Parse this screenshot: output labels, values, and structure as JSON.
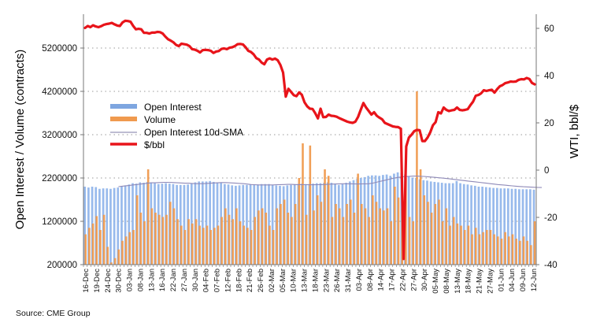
{
  "chart_data": {
    "type": "bar",
    "title": "",
    "source": "Source: CME Group",
    "y_left": {
      "label": "Open Interest / Volume (contracts)",
      "ticks": [
        200000,
        1200000,
        2200000,
        3200000,
        4200000,
        5200000
      ],
      "tick_labels": [
        "200000",
        "1200000",
        "2200000",
        "3200000",
        "4200000",
        "5200000"
      ],
      "range": [
        200000,
        6200000
      ],
      "grid": true
    },
    "y_right": {
      "label": "WTI, bbl/$",
      "ticks": [
        -40,
        -20,
        0,
        20,
        40,
        60
      ],
      "tick_labels": [
        "-40",
        "-20",
        "0",
        "20",
        "40",
        "60"
      ],
      "range": [
        -40,
        70
      ]
    },
    "x_tick_labels": [
      "16-Dec",
      "19-Dec",
      "24-Dec",
      "30-Dec",
      "03-Jan",
      "08-Jan",
      "13-Jan",
      "16-Jan",
      "22-Jan",
      "27-Jan",
      "30-Jan",
      "04-Feb",
      "07-Feb",
      "12-Feb",
      "18-Feb",
      "21-Feb",
      "26-Feb",
      "02-Mar",
      "05-Mar",
      "10-Mar",
      "13-Mar",
      "18-Mar",
      "23-Mar",
      "26-Mar",
      "31-Mar",
      "03-Apr",
      "08-Apr",
      "14-Apr",
      "17-Apr",
      "22-Apr",
      "27-Apr",
      "30-Apr",
      "05-May",
      "08-May",
      "13-May",
      "18-May",
      "21-May",
      "27-May",
      "01-Jun",
      "04-Jun",
      "09-Jun",
      "12-Jun"
    ],
    "legend": {
      "position": "center-left",
      "entries": [
        {
          "name": "Open Interest",
          "color": "#7ea6e0",
          "type": "bar"
        },
        {
          "name": "Volume",
          "color": "#f09a4e",
          "type": "bar"
        },
        {
          "name": "Open Interest 10d-SMA",
          "color": "#a9a6c4",
          "type": "line"
        },
        {
          "name": "$/bbl",
          "color": "#e8141a",
          "type": "line"
        }
      ]
    },
    "series": [
      {
        "name": "Open Interest",
        "axis": "left",
        "color": "#7ea6e0",
        "values": [
          2000000,
          1980000,
          2000000,
          1990000,
          1950000,
          1960000,
          1960000,
          1950000,
          1970000,
          1980000,
          2000000,
          2030000,
          2050000,
          2080000,
          2070000,
          2100000,
          2090000,
          2110000,
          2100000,
          2080000,
          2060000,
          2070000,
          2080000,
          2070000,
          2060000,
          2040000,
          2040000,
          2040000,
          2050000,
          2080000,
          2100000,
          2120000,
          2120000,
          2120000,
          2130000,
          2110000,
          2100000,
          2090000,
          2060000,
          2050000,
          2030000,
          2020000,
          2030000,
          2040000,
          2040000,
          2050000,
          2050000,
          2050000,
          2060000,
          2060000,
          2060000,
          2040000,
          2030000,
          2020000,
          2010000,
          2030000,
          2040000,
          2050000,
          2060000,
          2070000,
          2060000,
          2060000,
          2070000,
          2080000,
          2080000,
          2090000,
          2100000,
          2090000,
          2070000,
          2040000,
          2060000,
          2090000,
          2120000,
          2150000,
          2180000,
          2200000,
          2220000,
          2250000,
          2260000,
          2260000,
          2250000,
          2270000,
          2280000,
          2250000,
          2300000,
          2330000,
          2320000,
          2280000,
          2240000,
          2210000,
          2200000,
          2170000,
          2150000,
          2140000,
          2120000,
          2110000,
          2100000,
          2090000,
          2080000,
          2080000,
          2080000,
          2130000,
          2080000,
          2060000,
          2050000,
          2030000,
          2020000,
          2000000,
          2000000,
          1990000,
          1980000,
          1970000,
          1970000,
          1960000,
          1960000,
          1960000,
          1950000,
          1950000,
          1940000,
          1940000,
          1940000,
          1940000,
          1930000
        ]
      },
      {
        "name": "Volume",
        "axis": "left",
        "color": "#f09a4e",
        "values": [
          900000,
          1050000,
          1150000,
          1320000,
          1000000,
          1350000,
          610000,
          250000,
          350000,
          550000,
          750000,
          850000,
          950000,
          1000000,
          1800000,
          1400000,
          1200000,
          2400000,
          1500000,
          1400000,
          1350000,
          1300000,
          1350000,
          1650000,
          1500000,
          1250000,
          1100000,
          1000000,
          1250000,
          1150000,
          1250000,
          1100000,
          1050000,
          1100000,
          1000000,
          1050000,
          1100000,
          1300000,
          1500000,
          1350000,
          1250000,
          1500000,
          1200000,
          1100000,
          1050000,
          1000000,
          1300000,
          1450000,
          1500000,
          1400000,
          1100000,
          1000000,
          1500000,
          1600000,
          1700000,
          1400000,
          1300000,
          1600000,
          2200000,
          3000000,
          1350000,
          2950000,
          1450000,
          1800000,
          1650000,
          2400000,
          2250000,
          1300000,
          1600000,
          1500000,
          1300000,
          1600000,
          1700000,
          1400000,
          2300000,
          1600000,
          1500000,
          1300000,
          1800000,
          1650000,
          1500000,
          1450000,
          1500000,
          1200000,
          2000000,
          1750000,
          1500000,
          2200000,
          1300000,
          1200000,
          4200000,
          2400000,
          1800000,
          1650000,
          1400000,
          1600000,
          1700000,
          1200000,
          1500000,
          1100000,
          1300000,
          1150000,
          1100000,
          1000000,
          1100000,
          900000,
          1050000,
          900000,
          950000,
          1000000,
          1000000,
          900000,
          850000,
          800000,
          950000,
          850000,
          900000,
          800000,
          750000,
          850000,
          750000,
          650000,
          1200000
        ]
      },
      {
        "name": "Open Interest 10d-SMA",
        "axis": "left",
        "color": "#a9a6c4",
        "start_index": 9,
        "values": [
          2000000,
          2010000,
          2020000,
          2030000,
          2040000,
          2050000,
          2060000,
          2070000,
          2080000,
          2090000,
          2090000,
          2095000,
          2100000,
          2100000,
          2100000,
          2095000,
          2090000,
          2085000,
          2080000,
          2080000,
          2075000,
          2070000,
          2070000,
          2070000,
          2075000,
          2080000,
          2085000,
          2090000,
          2095000,
          2095000,
          2090000,
          2085000,
          2080000,
          2075000,
          2070000,
          2060000,
          2050000,
          2045000,
          2040000,
          2040000,
          2040000,
          2040000,
          2040000,
          2045000,
          2048000,
          2050000,
          2052000,
          2052000,
          2050000,
          2048000,
          2046000,
          2045000,
          2044000,
          2044000,
          2046000,
          2048000,
          2050000,
          2054000,
          2058000,
          2062000,
          2066000,
          2068000,
          2068000,
          2066000,
          2064000,
          2062000,
          2064000,
          2066000,
          2068000,
          2080000,
          2100000,
          2120000,
          2140000,
          2160000,
          2180000,
          2200000,
          2215000,
          2225000,
          2232000,
          2238000,
          2244000,
          2244000,
          2240000,
          2236000,
          2230000,
          2222000,
          2214000,
          2206000,
          2198000,
          2190000,
          2180000,
          2170000,
          2160000,
          2150000,
          2140000,
          2130000,
          2120000,
          2110000,
          2100000,
          2090000,
          2080000,
          2070000,
          2060000,
          2050000,
          2042000,
          2034000,
          2026000,
          2018000,
          2010000,
          2004000,
          1998000,
          1994000,
          1990000,
          1986000,
          1982000,
          1980000
        ]
      },
      {
        "name": "$/bbl",
        "axis": "right",
        "color": "#e8141a",
        "values": [
          60.2,
          61.0,
          60.5,
          61.3,
          60.8,
          60.5,
          60.9,
          61.5,
          61.8,
          62.0,
          62.3,
          61.7,
          61.2,
          61.0,
          62.5,
          63.2,
          63.1,
          62.8,
          61.0,
          59.6,
          59.8,
          59.6,
          58.1,
          58.1,
          57.8,
          58.2,
          58.2,
          58.5,
          58.4,
          57.8,
          56.5,
          55.4,
          54.8,
          54.1,
          53.0,
          52.5,
          53.5,
          53.3,
          53.1,
          52.5,
          51.2,
          51.0,
          50.5,
          49.8,
          50.8,
          50.9,
          50.8,
          50.5,
          49.6,
          50.2,
          50.4,
          51.3,
          51.5,
          51.2,
          51.8,
          52.0,
          52.5,
          53.3,
          53.4,
          53.2,
          52.0,
          50.5,
          50.0,
          49.0,
          47.4,
          46.8,
          45.5,
          44.8,
          46.8,
          47.3,
          46.8,
          47.2,
          46.5,
          44.5,
          41.3,
          31.1,
          34.4,
          33.1,
          31.7,
          31.3,
          32.9,
          31.9,
          28.7,
          27.0,
          26.0,
          25.9,
          24.1,
          21.9,
          26.0,
          22.4,
          22.5,
          23.5,
          23.0,
          22.9,
          22.6,
          22.0,
          21.5,
          21.0,
          20.5,
          20.2,
          20.0,
          20.5,
          22.5,
          25.5,
          28.4,
          26.5,
          25.0,
          23.5,
          24.5,
          23.0,
          22.2,
          21.5,
          20.0,
          19.5,
          19.0,
          18.5,
          18.3,
          18.2,
          17.5,
          -37.6,
          10.0,
          13.8,
          15.0,
          16.5,
          17.0,
          16.9,
          12.3,
          12.3,
          13.8,
          16.0,
          19.0,
          20.3,
          24.5,
          24.0,
          26.5,
          25.5,
          25.0,
          25.3,
          25.5,
          26.5,
          25.5,
          25.3,
          25.5,
          25.8,
          27.5,
          29.0,
          31.5,
          31.8,
          32.5,
          33.8,
          33.5,
          33.8,
          34.0,
          32.8,
          34.3,
          35.5,
          36.0,
          36.8,
          37.1,
          37.5,
          37.4,
          37.5,
          38.2,
          38.5,
          38.4,
          39.0,
          38.6,
          36.9,
          36.3
        ]
      }
    ]
  }
}
